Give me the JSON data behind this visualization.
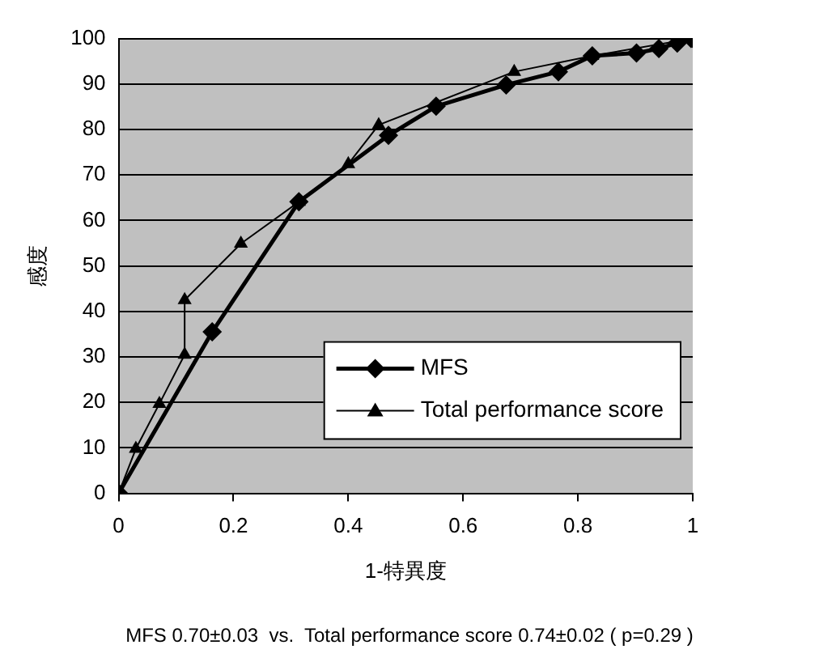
{
  "chart_data": {
    "type": "line",
    "xlabel": "1-特異度",
    "ylabel": "感度",
    "xlim": [
      0,
      1
    ],
    "xticks": [
      0,
      0.2,
      0.4,
      0.6,
      0.8,
      1
    ],
    "ylim": [
      0,
      100
    ],
    "yticks": [
      0,
      10,
      20,
      30,
      40,
      50,
      60,
      70,
      80,
      90,
      100
    ],
    "grid": "y",
    "legend": "bottom right",
    "series": [
      {
        "name": "MFS",
        "color": "#000000",
        "marker": "diamond",
        "x": [
          0,
          0.163,
          0.314,
          0.47,
          0.553,
          0.675,
          0.766,
          0.825,
          0.902,
          0.941,
          0.973,
          0.997,
          1
        ],
        "values": [
          0,
          35.5,
          64.1,
          78.7,
          85.1,
          89.8,
          92.7,
          96.2,
          96.8,
          97.8,
          99,
          100,
          100
        ]
      },
      {
        "name": "Total performance score",
        "color": "#000000",
        "marker": "triangle",
        "x": [
          0,
          0.03,
          0.071,
          0.115,
          0.115,
          0.213,
          0.314,
          0.4,
          0.453,
          0.689,
          0.825,
          1
        ],
        "values": [
          0,
          9.8,
          19.7,
          30.5,
          42.5,
          54.9,
          64.1,
          72.4,
          81,
          92.7,
          96.2,
          100
        ]
      }
    ],
    "annotations": [
      "MFS 0.70±0.03  vs.  Total performance score 0.74±0.02 ( p=0.29 )"
    ]
  }
}
